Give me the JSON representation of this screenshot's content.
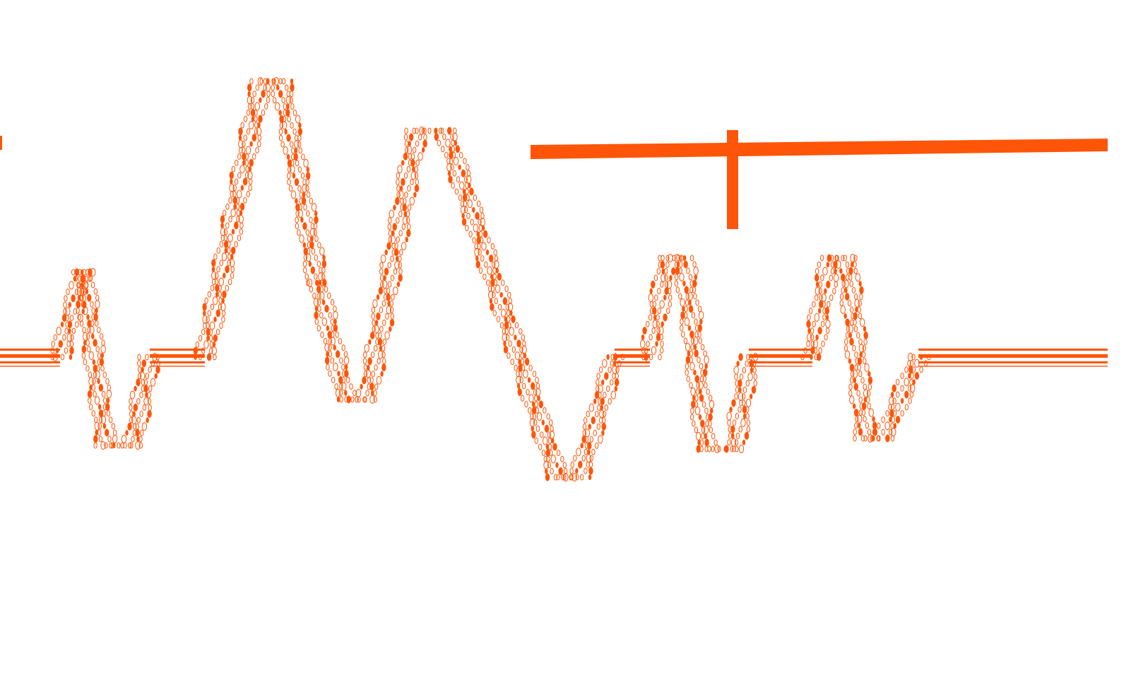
{
  "artwork": {
    "accent_color": "#ff5508",
    "background_color": "#ffffff",
    "elements": [
      "oscillating-waveform",
      "t-shaped-marker",
      "left-edge-tick"
    ]
  }
}
